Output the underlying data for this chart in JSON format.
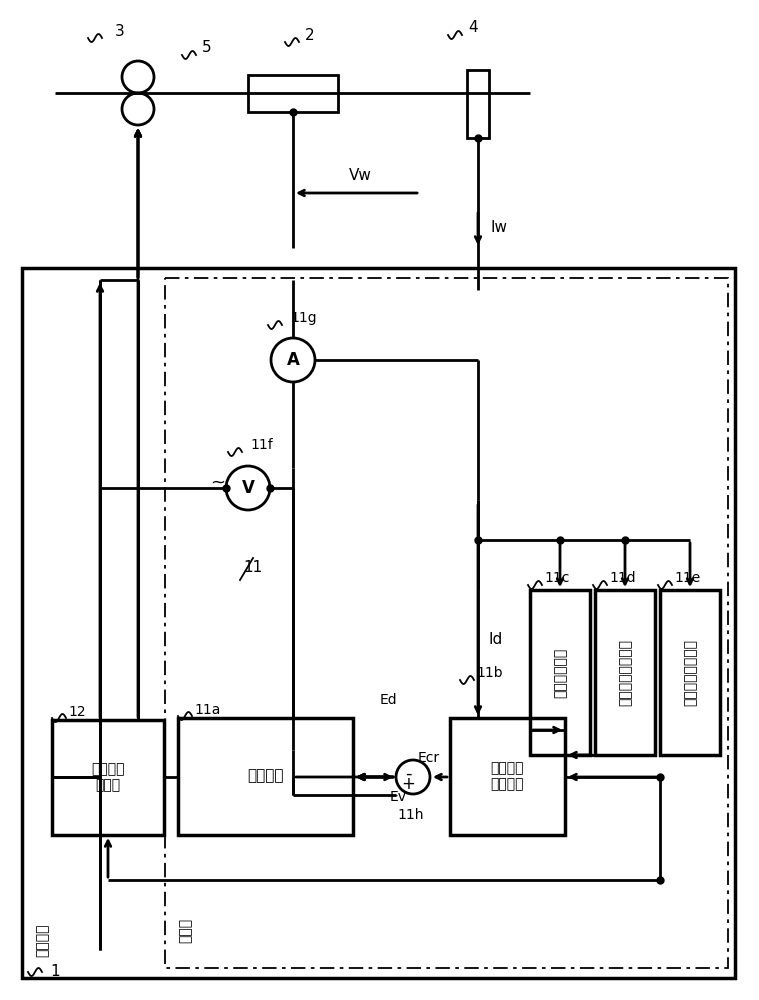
{
  "bg_color": "#ffffff",
  "line_color": "#000000",
  "labels": {
    "welding_device": "焊接装置",
    "power_section": "电源部",
    "feed_control": "进给速度\n控制部",
    "power_circuit": "电源电路",
    "output_voltage_l1": "输出电压",
    "output_voltage_l2": "设定电路",
    "freq_circuit": "频率设定电路",
    "amp_circuit": "电流振幅设定电路",
    "avg_circuit": "平均电流设定电路"
  }
}
